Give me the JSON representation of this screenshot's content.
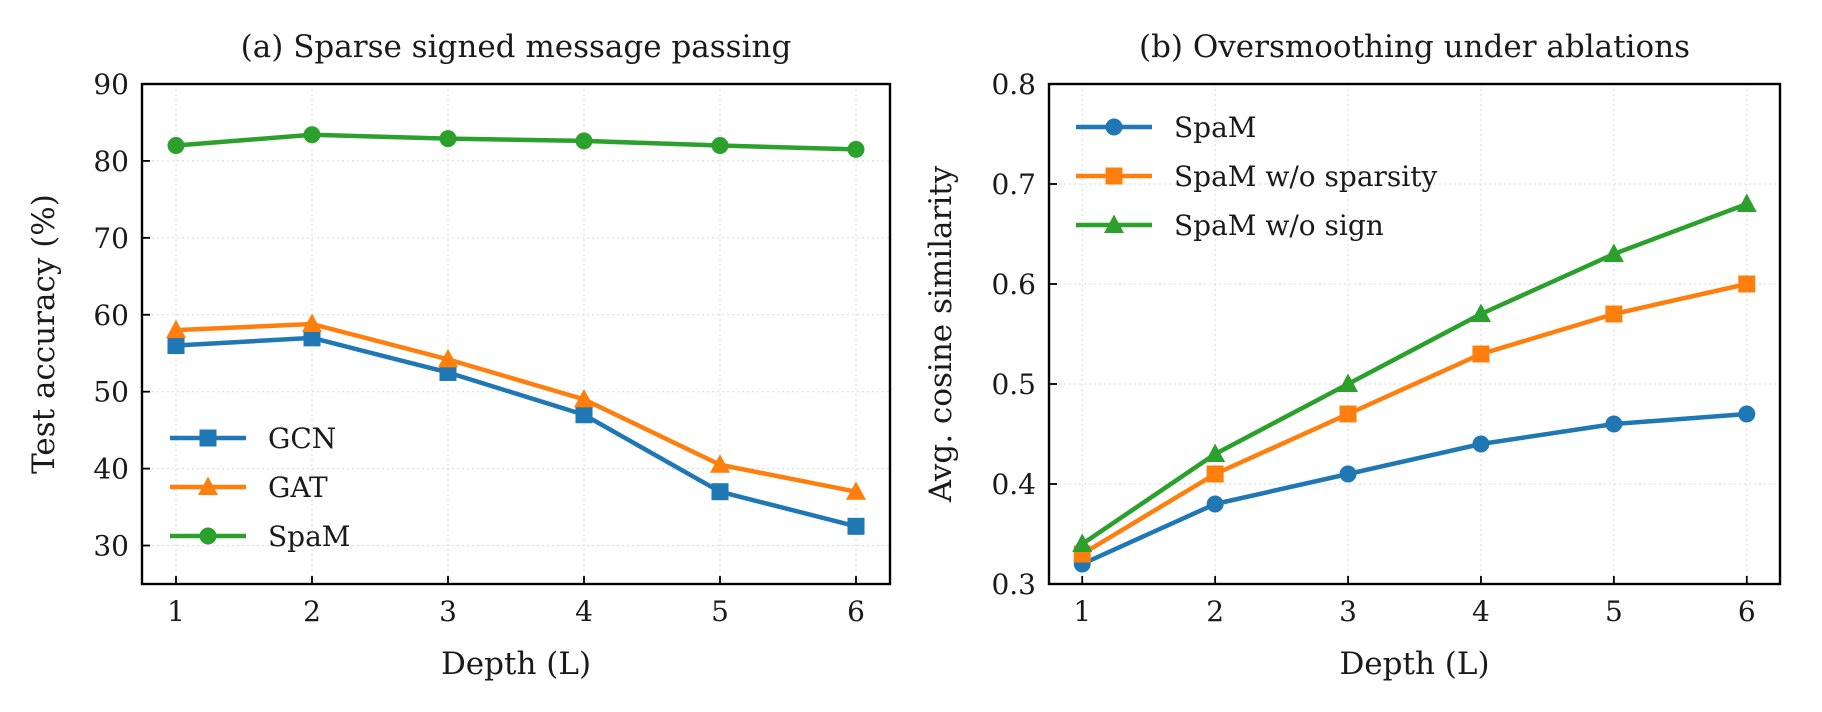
{
  "chart_data": [
    {
      "type": "line",
      "title": "(a) Sparse signed message passing",
      "xlabel": "Depth (L)",
      "ylabel": "Test accuracy (%)",
      "x": [
        1,
        2,
        3,
        4,
        5,
        6
      ],
      "xticks": [
        "1",
        "2",
        "3",
        "4",
        "5",
        "6"
      ],
      "xlim": [
        0.75,
        6.25
      ],
      "ylim": [
        25,
        90
      ],
      "yticks": [
        "30",
        "40",
        "50",
        "60",
        "70",
        "80",
        "90"
      ],
      "grid": true,
      "legend_position": "lower-left",
      "series": [
        {
          "name": "GCN",
          "values": [
            56,
            57,
            52.5,
            47,
            37,
            32.5
          ],
          "color": "#1f77b4",
          "marker": "square"
        },
        {
          "name": "GAT",
          "values": [
            58,
            58.8,
            54.2,
            49,
            40.5,
            37
          ],
          "color": "#ff7f0e",
          "marker": "triangle"
        },
        {
          "name": "SpaM",
          "values": [
            82,
            83.4,
            82.9,
            82.6,
            82,
            81.5
          ],
          "color": "#2ca02c",
          "marker": "circle"
        }
      ]
    },
    {
      "type": "line",
      "title": "(b) Oversmoothing under ablations",
      "xlabel": "Depth (L)",
      "ylabel": "Avg. cosine similarity",
      "x": [
        1,
        2,
        3,
        4,
        5,
        6
      ],
      "xticks": [
        "1",
        "2",
        "3",
        "4",
        "5",
        "6"
      ],
      "xlim": [
        0.75,
        6.25
      ],
      "ylim": [
        0.3,
        0.8
      ],
      "yticks": [
        "0.3",
        "0.4",
        "0.5",
        "0.6",
        "0.7",
        "0.8"
      ],
      "grid": true,
      "legend_position": "upper-left",
      "series": [
        {
          "name": "SpaM",
          "values": [
            0.32,
            0.38,
            0.41,
            0.44,
            0.46,
            0.47
          ],
          "color": "#1f77b4",
          "marker": "circle"
        },
        {
          "name": "SpaM w/o sparsity",
          "values": [
            0.33,
            0.41,
            0.47,
            0.53,
            0.57,
            0.6
          ],
          "color": "#ff7f0e",
          "marker": "square"
        },
        {
          "name": "SpaM w/o sign",
          "values": [
            0.34,
            0.43,
            0.5,
            0.57,
            0.63,
            0.68
          ],
          "color": "#2ca02c",
          "marker": "triangle"
        }
      ]
    }
  ]
}
